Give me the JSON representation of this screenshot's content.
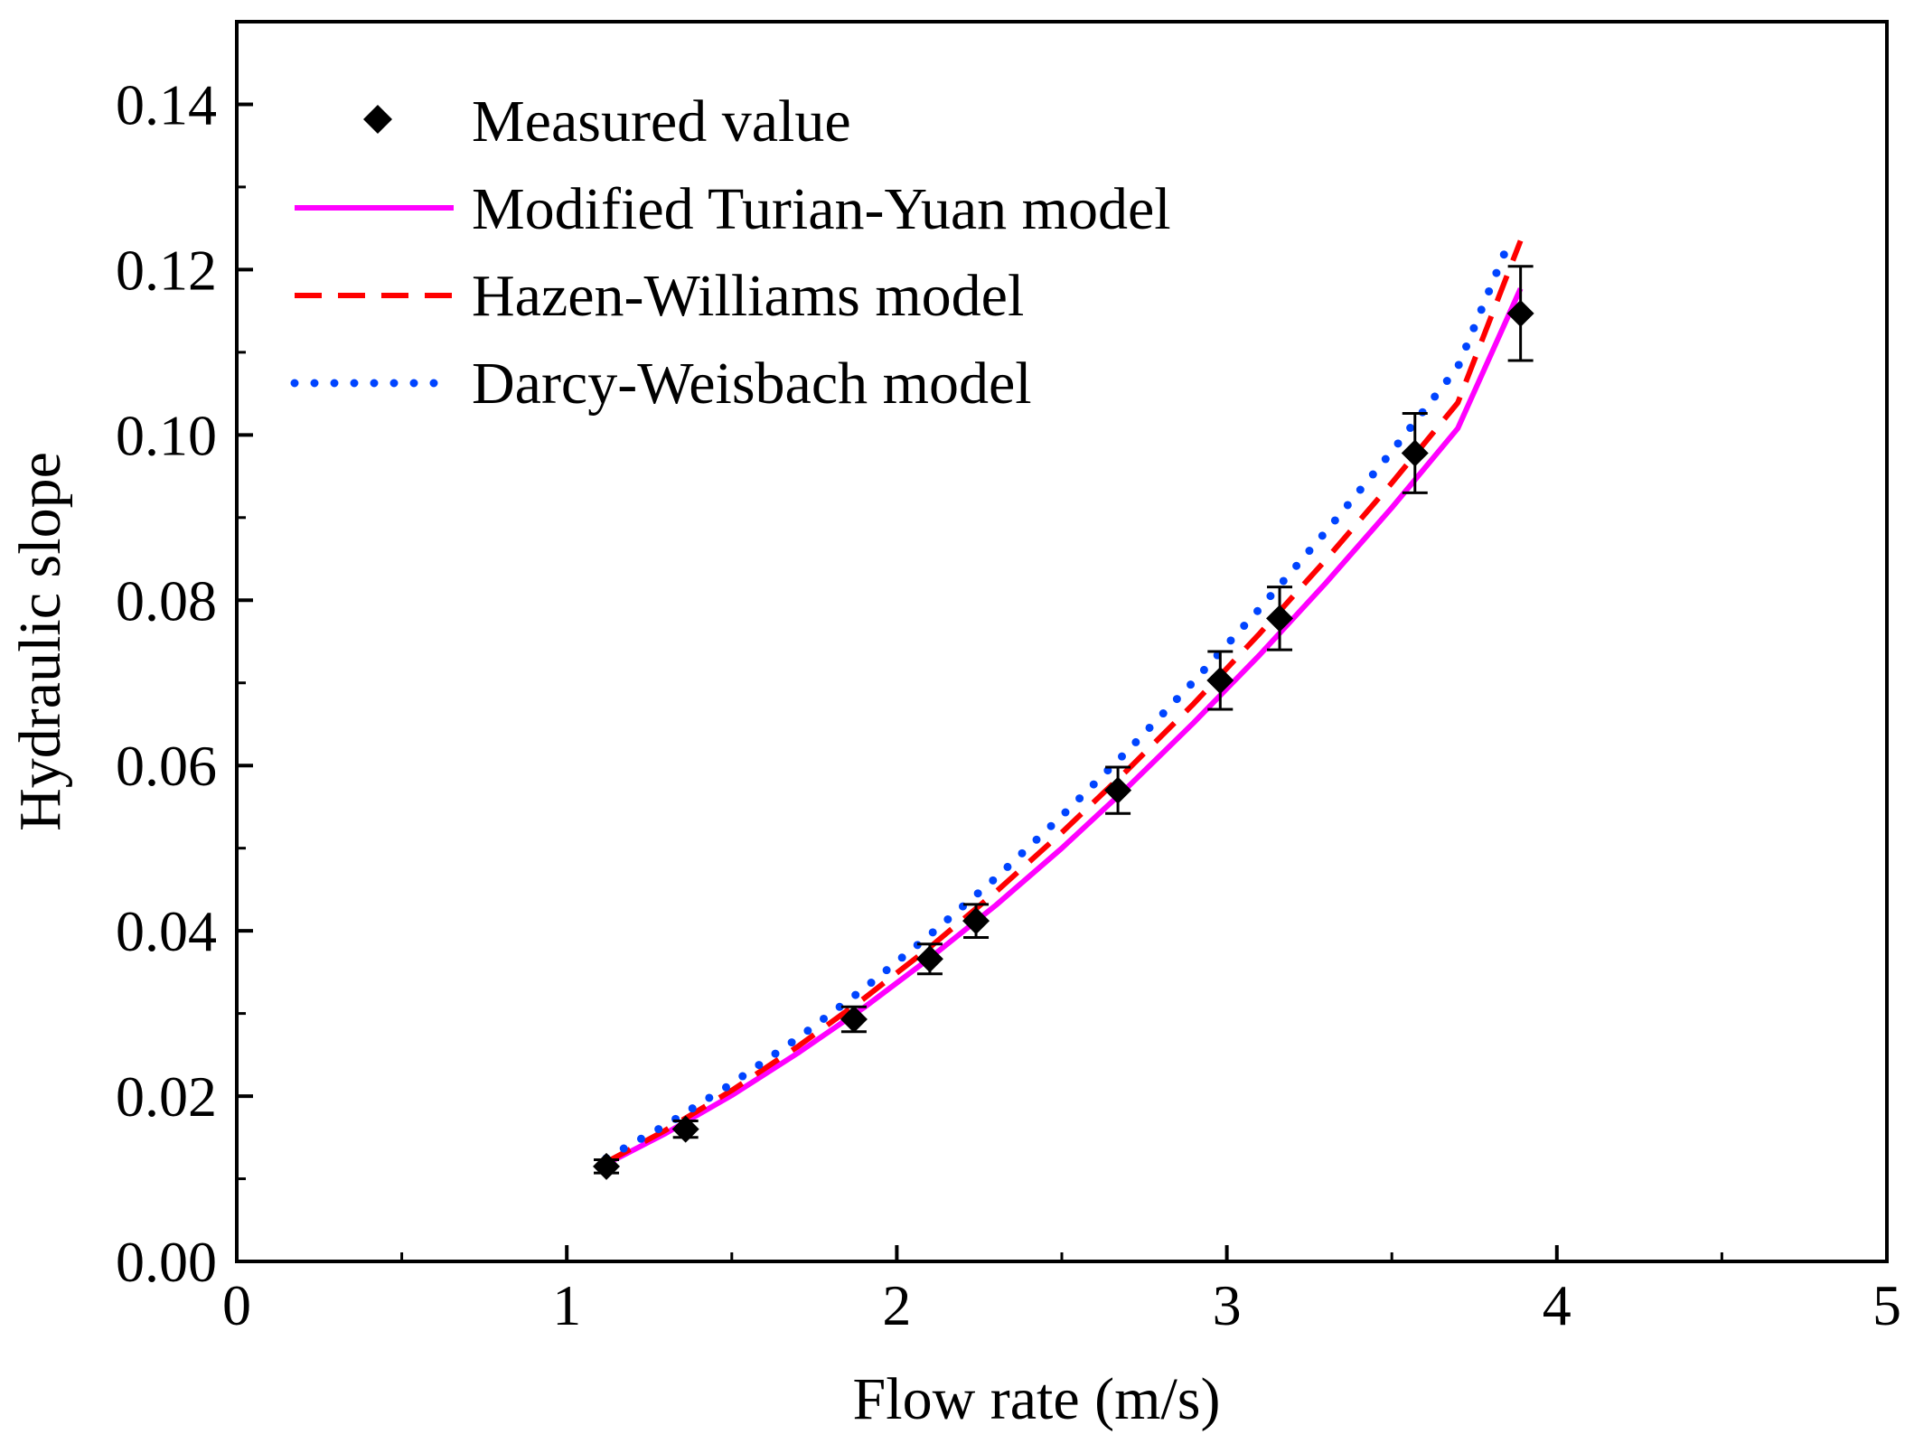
{
  "chart_data": {
    "type": "scatter",
    "title": "",
    "xlabel": "Flow rate (m/s)",
    "ylabel": "Hydraulic slope",
    "xlim": [
      0,
      5
    ],
    "ylim": [
      0,
      0.15
    ],
    "x_ticks": [
      0,
      1,
      2,
      3,
      4,
      5
    ],
    "x_tick_labels": [
      "0",
      "1",
      "2",
      "3",
      "4",
      "5"
    ],
    "y_ticks": [
      0,
      0.02,
      0.04,
      0.06,
      0.08,
      0.1,
      0.12,
      0.14
    ],
    "y_tick_labels": [
      "0.00",
      "0.02",
      "0.04",
      "0.06",
      "0.08",
      "0.10",
      "0.12",
      "0.14"
    ],
    "grid": false,
    "legend_position": "top-left",
    "measured": {
      "name": "Measured value",
      "color": "#000000",
      "marker": "diamond",
      "x": [
        1.12,
        1.36,
        1.87,
        2.1,
        2.24,
        2.67,
        2.98,
        3.16,
        3.57,
        3.89
      ],
      "y": [
        0.0115,
        0.016,
        0.0293,
        0.0366,
        0.0412,
        0.057,
        0.0703,
        0.0778,
        0.0978,
        0.1147
      ],
      "err": [
        0.0008,
        0.001,
        0.0015,
        0.0018,
        0.002,
        0.0028,
        0.0035,
        0.0038,
        0.0048,
        0.0057
      ]
    },
    "series": [
      {
        "name": "Modified Turian-Yuan model",
        "color": "#ff00ff",
        "style": "solid",
        "x": [
          1.12,
          1.3,
          1.5,
          1.7,
          1.9,
          2.1,
          2.3,
          2.5,
          2.7,
          2.9,
          3.1,
          3.3,
          3.5,
          3.7,
          3.89
        ],
        "y": [
          0.0118,
          0.0155,
          0.0201,
          0.0252,
          0.0307,
          0.0367,
          0.0431,
          0.05,
          0.0574,
          0.0652,
          0.0734,
          0.0821,
          0.0912,
          0.1008,
          0.1177
        ]
      },
      {
        "name": "Hazen-Williams model",
        "color": "#ff0000",
        "style": "dashed",
        "x": [
          1.12,
          1.3,
          1.5,
          1.7,
          1.9,
          2.1,
          2.3,
          2.5,
          2.7,
          2.9,
          3.1,
          3.3,
          3.5,
          3.7,
          3.89
        ],
        "y": [
          0.012,
          0.0159,
          0.0207,
          0.026,
          0.0318,
          0.038,
          0.0447,
          0.0519,
          0.0595,
          0.0675,
          0.076,
          0.0849,
          0.0942,
          0.1039,
          0.1235
        ]
      },
      {
        "name": "Darcy-Weisbach model",
        "color": "#0044ff",
        "style": "dotted",
        "x": [
          1.12,
          1.3,
          1.5,
          1.7,
          1.9,
          2.1,
          2.3,
          2.5,
          2.7,
          2.9,
          3.1,
          3.3,
          3.5,
          3.7,
          3.86
        ],
        "y": [
          0.0125,
          0.0165,
          0.0215,
          0.027,
          0.033,
          0.0395,
          0.0464,
          0.0539,
          0.0618,
          0.0702,
          0.079,
          0.0883,
          0.098,
          0.1082,
          0.1238
        ]
      }
    ]
  }
}
